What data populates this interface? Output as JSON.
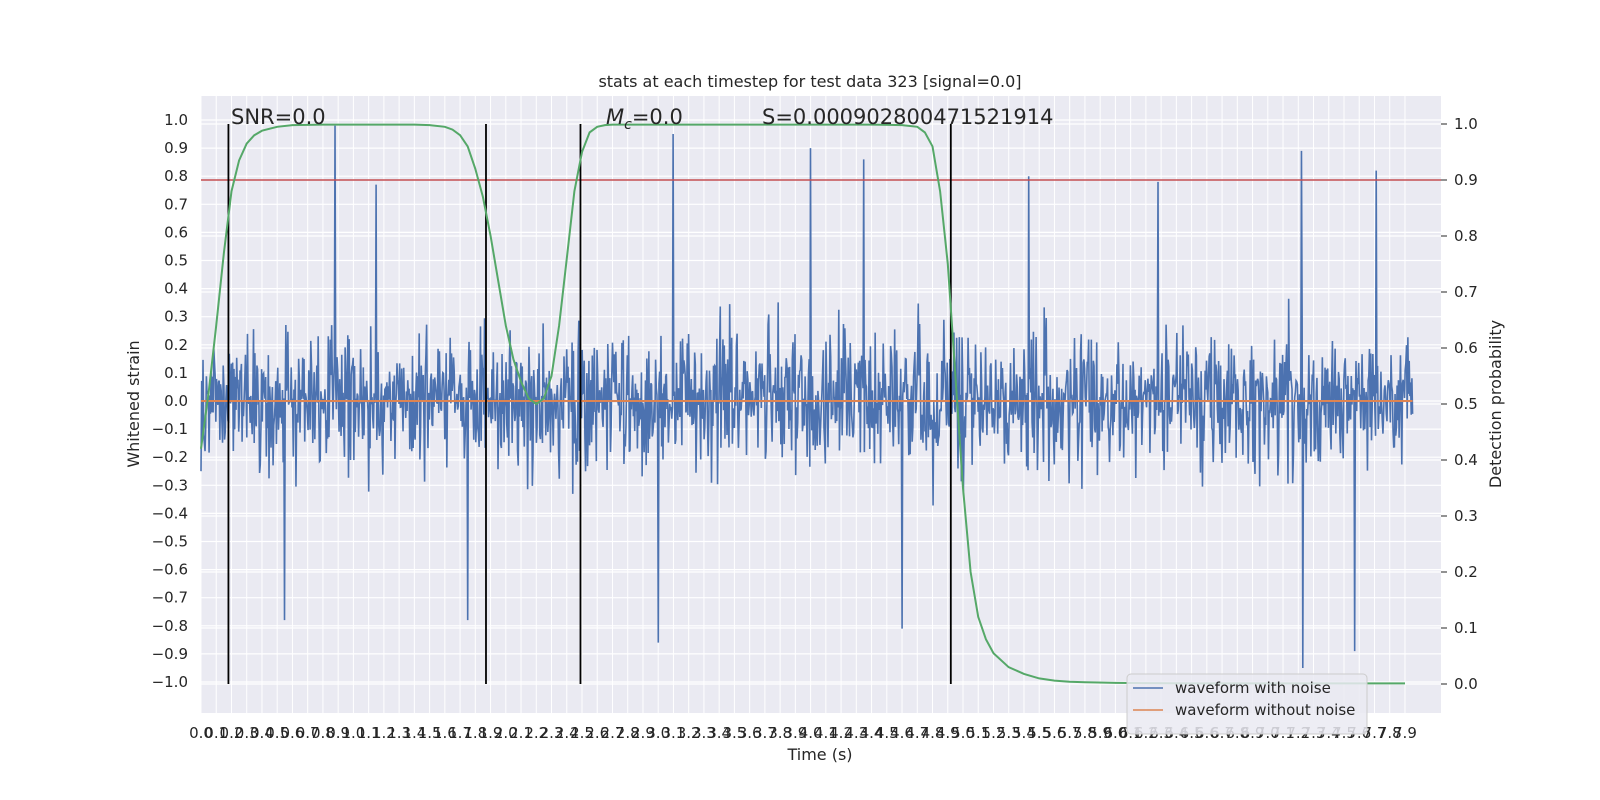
{
  "chart_data": {
    "type": "line",
    "title": "stats at each timestep for test data 323 [signal=0.0]",
    "xlabel": "Time (s)",
    "ylabel": "Whitened strain",
    "y2label": "Detection probability",
    "xlim": [
      0.0,
      7.95
    ],
    "ylim": [
      -1.1,
      1.05
    ],
    "y2lim": [
      -0.05,
      1.03
    ],
    "x_ticks": [
      "0.0",
      "0.1",
      "0.2",
      "0.3",
      "0.4",
      "0.5",
      "0.6",
      "0.7",
      "0.8",
      "0.9",
      "1.0",
      "1.1",
      "1.2",
      "1.3",
      "1.4",
      "1.5",
      "1.6",
      "1.7",
      "1.8",
      "1.9",
      "2.0",
      "2.1",
      "2.2",
      "2.3",
      "2.4",
      "2.5",
      "2.6",
      "2.7",
      "2.8",
      "2.9",
      "3.0",
      "3.1",
      "3.2",
      "3.3",
      "3.4",
      "3.5",
      "3.6",
      "3.7",
      "3.8",
      "3.9",
      "4.0",
      "4.1",
      "4.2",
      "4.3",
      "4.4",
      "4.5",
      "4.6",
      "4.7",
      "4.8",
      "4.9",
      "5.0",
      "5.1",
      "5.2",
      "5.3",
      "5.4",
      "5.5",
      "5.6",
      "5.7",
      "5.8",
      "5.9",
      "6.0",
      "6.1",
      "6.2",
      "6.3",
      "6.4",
      "6.5",
      "6.6",
      "6.7",
      "6.8",
      "6.9",
      "7.0",
      "7.1",
      "7.2",
      "7.3",
      "7.4",
      "7.5",
      "7.6",
      "7.7",
      "7.8",
      "7.9"
    ],
    "y_ticks": [
      "−1.0",
      "−0.9",
      "−0.8",
      "−0.7",
      "−0.6",
      "−0.5",
      "−0.4",
      "−0.3",
      "−0.2",
      "−0.1",
      "0.0",
      "0.1",
      "0.2",
      "0.3",
      "0.4",
      "0.5",
      "0.6",
      "0.7",
      "0.8",
      "0.9",
      "1.0"
    ],
    "y2_ticks": [
      "0.0",
      "0.1",
      "0.2",
      "0.3",
      "0.4",
      "0.5",
      "0.6",
      "0.7",
      "0.8",
      "0.9",
      "1.0"
    ],
    "threshold": 0.9,
    "vertical_lines_x": [
      0.18,
      1.87,
      2.49,
      4.92
    ],
    "annotations": {
      "snr": "SNR=0.0",
      "mc": "M",
      "mc_sub": "c",
      "mc_value": "=0.0",
      "s": "S=0.000902800471521914"
    },
    "legend": {
      "position": "lower right",
      "entries": [
        "waveform with noise",
        "waveform without noise"
      ]
    },
    "series": [
      {
        "name": "waveform with noise",
        "color": "#4c72b0",
        "note": "dense noise; body within about ±0.3, peaks listed",
        "peaks": [
          {
            "x": 0.88,
            "y": 0.98
          },
          {
            "x": 3.1,
            "y": 0.95
          },
          {
            "x": 4.0,
            "y": 0.9
          },
          {
            "x": 4.35,
            "y": 0.86
          },
          {
            "x": 7.22,
            "y": 0.89
          },
          {
            "x": 7.71,
            "y": 0.82
          },
          {
            "x": 5.43,
            "y": 0.8
          },
          {
            "x": 6.28,
            "y": 0.78
          },
          {
            "x": 1.15,
            "y": 0.77
          },
          {
            "x": 3.0,
            "y": -0.86
          },
          {
            "x": 4.6,
            "y": -0.81
          },
          {
            "x": 7.23,
            "y": -0.95
          },
          {
            "x": 7.57,
            "y": -0.89
          },
          {
            "x": 0.55,
            "y": -0.78
          },
          {
            "x": 1.75,
            "y": -0.78
          }
        ]
      },
      {
        "name": "waveform without noise",
        "color": "#dd8452",
        "x": [
          0.0,
          7.95
        ],
        "y": [
          0.0,
          0.0
        ]
      },
      {
        "name": "Detection probability",
        "color": "#55a868",
        "axis": "right",
        "x": [
          0.0,
          0.05,
          0.1,
          0.15,
          0.2,
          0.25,
          0.3,
          0.35,
          0.4,
          0.5,
          0.6,
          0.8,
          1.0,
          1.2,
          1.4,
          1.5,
          1.6,
          1.65,
          1.7,
          1.75,
          1.8,
          1.85,
          1.9,
          1.95,
          2.0,
          2.05,
          2.1,
          2.15,
          2.2,
          2.25,
          2.3,
          2.35,
          2.4,
          2.45,
          2.5,
          2.55,
          2.6,
          2.65,
          2.7,
          2.8,
          3.0,
          3.5,
          4.0,
          4.4,
          4.6,
          4.7,
          4.75,
          4.8,
          4.85,
          4.9,
          4.95,
          5.0,
          5.05,
          5.1,
          5.15,
          5.2,
          5.3,
          5.4,
          5.5,
          5.6,
          5.7,
          5.8,
          6.0,
          6.5,
          7.0,
          7.5,
          7.9
        ],
        "y": [
          0.42,
          0.52,
          0.64,
          0.77,
          0.88,
          0.935,
          0.965,
          0.98,
          0.988,
          0.995,
          0.998,
          0.999,
          0.999,
          0.999,
          0.999,
          0.998,
          0.995,
          0.99,
          0.98,
          0.96,
          0.92,
          0.87,
          0.8,
          0.72,
          0.64,
          0.58,
          0.54,
          0.51,
          0.5,
          0.51,
          0.55,
          0.64,
          0.76,
          0.88,
          0.95,
          0.985,
          0.995,
          0.998,
          0.999,
          0.999,
          0.999,
          0.999,
          0.999,
          0.999,
          0.998,
          0.995,
          0.985,
          0.96,
          0.88,
          0.75,
          0.55,
          0.35,
          0.2,
          0.12,
          0.08,
          0.055,
          0.03,
          0.018,
          0.01,
          0.006,
          0.004,
          0.003,
          0.002,
          0.001,
          0.001,
          0.001,
          0.001
        ]
      }
    ],
    "threshold_color": "#c44e52",
    "background": "#eaeaf2"
  }
}
